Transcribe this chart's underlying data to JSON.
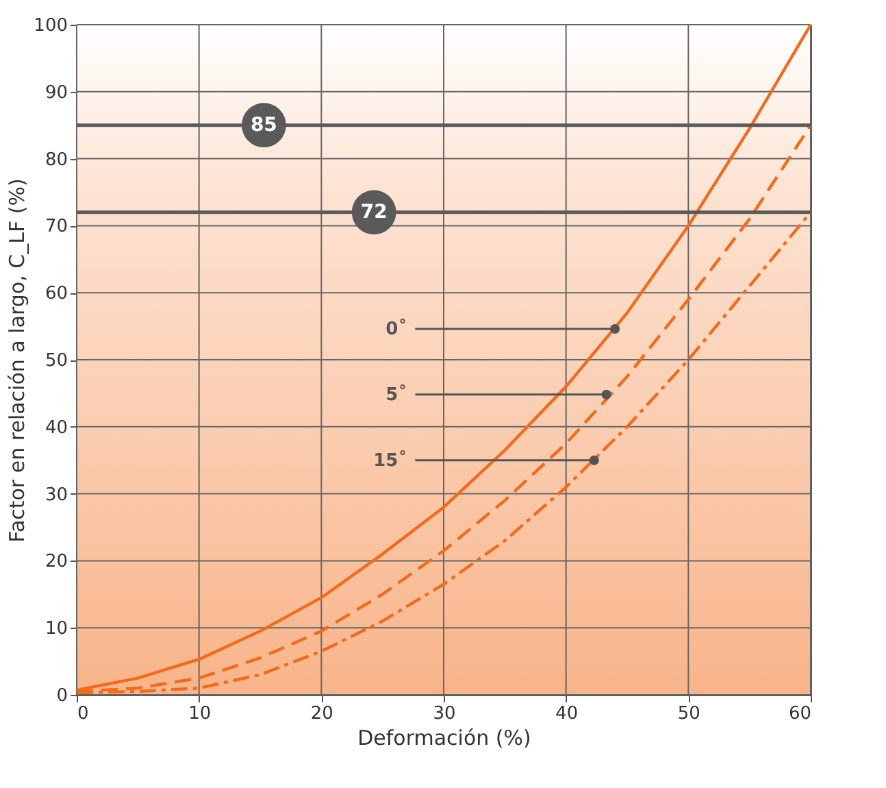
{
  "chart_data": {
    "type": "line",
    "xlabel": "Deformación (%)",
    "ylabel": "Factor en relación a largo, C_LF (%)",
    "x": [
      0,
      5,
      10,
      15,
      20,
      25,
      30,
      35,
      40,
      45,
      50,
      55,
      60
    ],
    "series": [
      {
        "color": "#f26b1d",
        "line_style": "solid",
        "values": [
          0.7,
          2.5,
          5.3,
          9.5,
          14.5,
          21,
          28,
          36.5,
          46,
          57,
          70,
          84.5,
          100
        ]
      },
      {
        "color": "#f26b1d",
        "line_style": "dashed",
        "values": [
          0.5,
          1,
          2.5,
          5.5,
          9.5,
          15,
          21.5,
          29,
          37.5,
          47.5,
          59,
          71,
          85
        ]
      },
      {
        "color": "#f26b1d",
        "line_style": "dotted",
        "values": [
          0.3,
          0.5,
          1,
          3,
          6.5,
          11,
          16.5,
          23,
          31,
          40,
          50,
          61,
          72
        ]
      }
    ],
    "annotations": [
      {
        "text": "0˚",
        "x": 44,
        "y": 54.6
      },
      {
        "text": "5˚",
        "x": 43.3,
        "y": 44.8
      },
      {
        "text": "15˚",
        "x": 42.3,
        "y": 35
      }
    ],
    "ref_lines": [
      {
        "axis": "y",
        "value": 85,
        "label": "85",
        "color": "#5a5a5a"
      },
      {
        "axis": "y",
        "value": 72,
        "label": "72",
        "color": "#5a5a5a"
      }
    ],
    "xlim": [
      0,
      60
    ],
    "xticks": [
      0,
      10,
      20,
      30,
      40,
      50,
      60
    ],
    "ylim": [
      0,
      100
    ],
    "yticks": [
      0,
      10,
      20,
      30,
      40,
      50,
      60,
      70,
      80,
      90,
      100
    ],
    "grid": true,
    "marker": "none"
  }
}
